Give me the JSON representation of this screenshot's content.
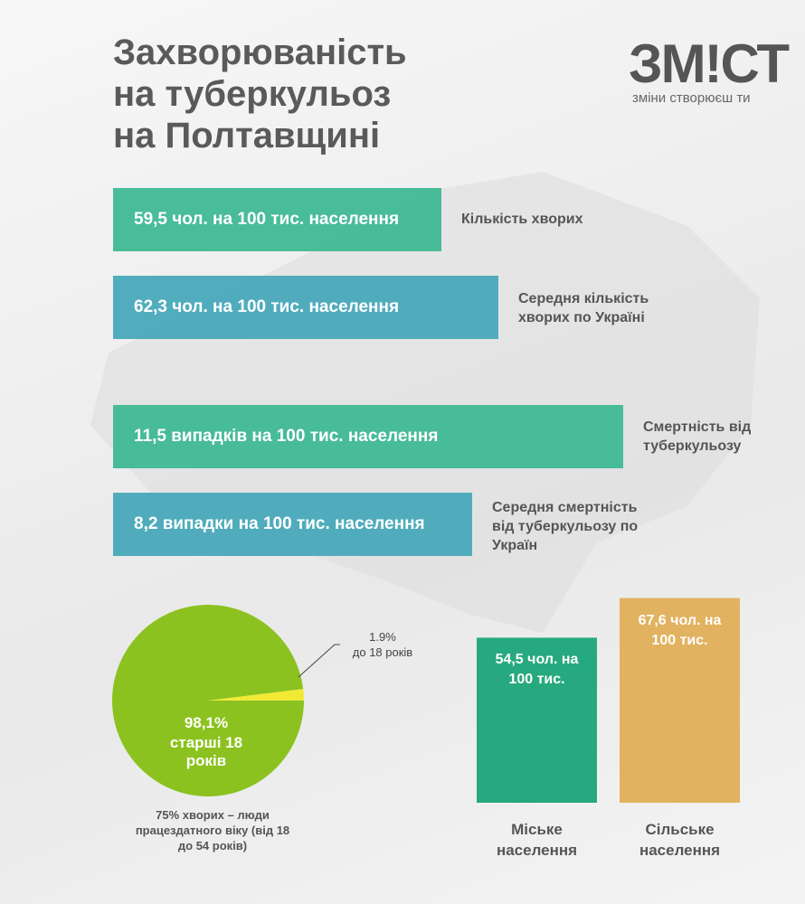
{
  "header": {
    "title": "Захворюваність на туберкульоз на Полтавщині",
    "logo": "ЗМ!СТ",
    "slogan": "зміни створюєш ти"
  },
  "stats": [
    {
      "text": "59,5 чол. на 100 тис. населення",
      "caption": "Кількість хворих",
      "color": "#3fb894"
    },
    {
      "text": "62,3 чол. на 100 тис. населення",
      "caption": "Середня кількість хворих по Україні",
      "color": "#48a9b9"
    },
    {
      "text": "11,5 випадків на 100 тис. населення",
      "caption": "Смертність від туберкульозу",
      "color": "#3fb894"
    },
    {
      "text": "8,2 випадки на 100 тис. населення",
      "caption": "Середня смертність від туберкульозу по Україн",
      "color": "#48a9b9"
    }
  ],
  "chart_data": [
    {
      "type": "pie",
      "categories": [
        "старші 18 років",
        "до 18 років"
      ],
      "values": [
        98.1,
        1.9
      ],
      "value_labels": [
        "98,1%",
        "1.9%"
      ],
      "colors": [
        "#8cc21f",
        "#f2e935"
      ],
      "note": "75% хворих – люди працездатного віку (від 18 до 54 років)"
    },
    {
      "type": "bar",
      "categories": [
        "Міське населення",
        "Сільське населення"
      ],
      "values": [
        54.5,
        67.6
      ],
      "value_labels": [
        "54,5 чол. на 100 тис.",
        "67,6 чол. на 100 тис."
      ],
      "colors": [
        "#27a97f",
        "#e1b25f"
      ]
    }
  ]
}
